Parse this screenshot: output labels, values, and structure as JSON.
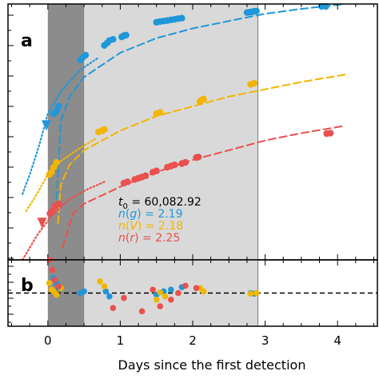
{
  "chart_data": [
    {
      "type": "scatter",
      "panel_label": "a",
      "xlabel": "Days since the first detection",
      "ylabel": "",
      "xlim": [
        -0.55,
        4.55
      ],
      "ylim": [
        -0.05,
        1.0
      ],
      "x_ticks": [
        0,
        1,
        2,
        3,
        4
      ],
      "x_tick_labels": [
        "0",
        "1",
        "2",
        "3",
        "4"
      ],
      "shaded_regions": [
        {
          "x": [
            0.0,
            0.5
          ],
          "color": "#8c8c8c"
        },
        {
          "x": [
            0.5,
            2.9
          ],
          "color": "#d9d9d9"
        }
      ],
      "annotations": [
        {
          "prefix": "t",
          "sub": "0",
          "value": "= 60,082.92",
          "color": "#000000"
        },
        {
          "prefix": "n",
          "band": "g",
          "value": "= 2.19",
          "color": "#1f97d8"
        },
        {
          "prefix": "n",
          "band": "V",
          "value": "= 2.18",
          "color": "#f2b500"
        },
        {
          "prefix": "n",
          "band": "r",
          "value": "= 2.25",
          "color": "#e8514f"
        }
      ],
      "series": [
        {
          "name": "g",
          "color": "#1f97d8",
          "x": [
            0.08,
            0.12,
            0.15,
            0.45,
            0.48,
            0.52,
            0.78,
            0.82,
            0.85,
            0.9,
            1.02,
            1.05,
            1.08,
            1.5,
            1.55,
            1.6,
            1.65,
            1.7,
            1.75,
            1.8,
            1.85,
            2.75,
            2.78,
            2.8,
            2.82,
            2.85,
            2.88,
            3.78,
            3.84
          ],
          "y": [
            0.55,
            0.56,
            0.58,
            0.77,
            0.78,
            0.79,
            0.83,
            0.84,
            0.85,
            0.855,
            0.865,
            0.87,
            0.872,
            0.925,
            0.928,
            0.93,
            0.932,
            0.935,
            0.937,
            0.94,
            0.942,
            0.965,
            0.966,
            0.967,
            0.968,
            0.97,
            0.971,
            0.99,
            0.99
          ]
        },
        {
          "name": "V",
          "color": "#f2b500",
          "x": [
            0.02,
            0.05,
            0.08,
            0.12,
            0.7,
            0.75,
            0.78,
            1.5,
            1.55,
            2.1,
            2.12,
            2.15,
            2.8,
            2.85
          ],
          "y": [
            0.3,
            0.31,
            0.33,
            0.35,
            0.475,
            0.48,
            0.485,
            0.55,
            0.555,
            0.6,
            0.605,
            0.61,
            0.67,
            0.675
          ]
        },
        {
          "name": "r",
          "color": "#e8514f",
          "x": [
            0.03,
            0.06,
            0.1,
            0.15,
            1.05,
            1.1,
            1.2,
            1.25,
            1.3,
            1.35,
            1.45,
            1.5,
            1.65,
            1.7,
            1.75,
            1.85,
            1.9,
            2.05,
            2.08,
            3.85,
            3.9
          ],
          "y": [
            0.14,
            0.15,
            0.17,
            0.18,
            0.265,
            0.27,
            0.28,
            0.285,
            0.29,
            0.295,
            0.31,
            0.315,
            0.33,
            0.335,
            0.34,
            0.345,
            0.35,
            0.37,
            0.372,
            0.468,
            0.47
          ]
        }
      ],
      "fit_curves": [
        {
          "band": "g",
          "color": "#1f97d8",
          "style": "dashed",
          "x": [
            0.12,
            0.18,
            0.3,
            0.5,
            1.0,
            1.5,
            2.0,
            2.5,
            3.0,
            3.5,
            4.1
          ],
          "y": [
            0.2,
            0.52,
            0.62,
            0.7,
            0.8,
            0.86,
            0.9,
            0.93,
            0.96,
            0.98,
            1.0
          ]
        },
        {
          "band": "g",
          "color": "#1f97d8",
          "style": "dotted",
          "x": [
            -0.35,
            -0.25,
            -0.12,
            0.0,
            0.2,
            0.45,
            0.7
          ],
          "y": [
            0.22,
            0.3,
            0.42,
            0.55,
            0.65,
            0.73,
            0.78
          ]
        },
        {
          "band": "V",
          "color": "#f2b500",
          "style": "dashed",
          "x": [
            0.14,
            0.18,
            0.3,
            0.5,
            1.0,
            1.5,
            2.0,
            2.5,
            3.0,
            3.5,
            4.1
          ],
          "y": [
            0.1,
            0.26,
            0.34,
            0.4,
            0.48,
            0.54,
            0.58,
            0.62,
            0.65,
            0.68,
            0.71
          ]
        },
        {
          "band": "V",
          "color": "#f2b500",
          "style": "dotted",
          "x": [
            -0.3,
            -0.15,
            0.0,
            0.2,
            0.45,
            0.68
          ],
          "y": [
            0.15,
            0.22,
            0.3,
            0.36,
            0.41,
            0.45
          ]
        },
        {
          "band": "r",
          "color": "#e8514f",
          "style": "dashed",
          "x": [
            0.2,
            0.35,
            0.5,
            1.0,
            1.5,
            2.0,
            2.5,
            3.0,
            3.5,
            4.1
          ],
          "y": [
            0.0,
            0.14,
            0.18,
            0.25,
            0.31,
            0.36,
            0.4,
            0.44,
            0.47,
            0.5
          ]
        },
        {
          "band": "r",
          "color": "#e8514f",
          "style": "dotted",
          "x": [
            -0.35,
            -0.15,
            0.05,
            0.3,
            0.55,
            0.78
          ],
          "y": [
            -0.05,
            0.05,
            0.13,
            0.2,
            0.24,
            0.27
          ]
        }
      ],
      "upper_limit_markers": [
        {
          "band": "g",
          "x": -0.02,
          "y": 0.5,
          "color": "#1f97d8"
        },
        {
          "band": "r",
          "x": -0.08,
          "y": 0.1,
          "color": "#e8514f"
        }
      ]
    },
    {
      "type": "scatter",
      "panel_label": "b",
      "xlim": [
        -0.55,
        4.55
      ],
      "ylim": [
        -1.0,
        1.0
      ],
      "reference_line_y": 0,
      "series": [
        {
          "name": "g",
          "color": "#1f97d8",
          "x": [
            0.08,
            0.12,
            0.15,
            0.45,
            0.5,
            0.8,
            0.85,
            1.5,
            1.6,
            1.7,
            1.85,
            2.8,
            2.85
          ],
          "y": [
            0.45,
            0.3,
            0.15,
            0.0,
            0.05,
            0.05,
            -0.1,
            -0.05,
            0.05,
            0.1,
            0.18,
            0.0,
            -0.02
          ]
        },
        {
          "name": "V",
          "color": "#f2b500",
          "x": [
            0.02,
            0.05,
            0.08,
            0.12,
            0.18,
            0.72,
            0.78,
            1.5,
            1.55,
            1.62,
            2.1,
            2.15,
            2.8,
            2.88
          ],
          "y": [
            0.3,
            0.1,
            0.05,
            -0.05,
            0.15,
            0.35,
            0.2,
            -0.2,
            0.02,
            -0.1,
            0.15,
            0.05,
            -0.02,
            0.0
          ]
        },
        {
          "name": "r",
          "color": "#e8514f",
          "x": [
            0.03,
            0.06,
            0.1,
            0.15,
            0.9,
            1.05,
            1.3,
            1.45,
            1.55,
            1.7,
            1.8,
            1.9,
            2.05
          ],
          "y": [
            1.0,
            0.7,
            0.4,
            0.2,
            -0.45,
            -0.15,
            -0.55,
            0.1,
            -0.4,
            -0.2,
            0.0,
            0.22,
            0.15
          ]
        }
      ]
    }
  ]
}
